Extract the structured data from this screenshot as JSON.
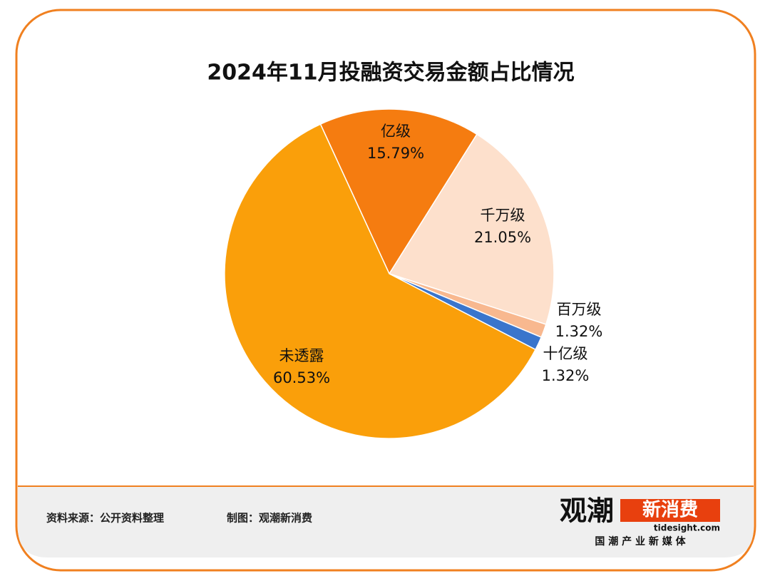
{
  "chart_data": {
    "type": "pie",
    "title": "2024年11月投融资交易金额占比情况",
    "categories": [
      "亿级",
      "千万级",
      "百万级",
      "十亿级",
      "未透露"
    ],
    "values": [
      15.79,
      21.05,
      1.32,
      1.32,
      60.53
    ],
    "value_labels": [
      "15.79%",
      "21.05%",
      "1.32%",
      "1.32%",
      "60.53%"
    ],
    "colors": [
      "#f57c10",
      "#fde0cc",
      "#f8b88f",
      "#3a75cc",
      "#fa9f0a"
    ]
  },
  "footer": {
    "source": "资料来源：公开资料整理",
    "credit": "制图：观潮新消费",
    "logo": {
      "name_a": "观潮",
      "name_b": "新消费",
      "site": "tidesight.com",
      "slogan": "国 潮 产 业 新 媒 体"
    }
  }
}
